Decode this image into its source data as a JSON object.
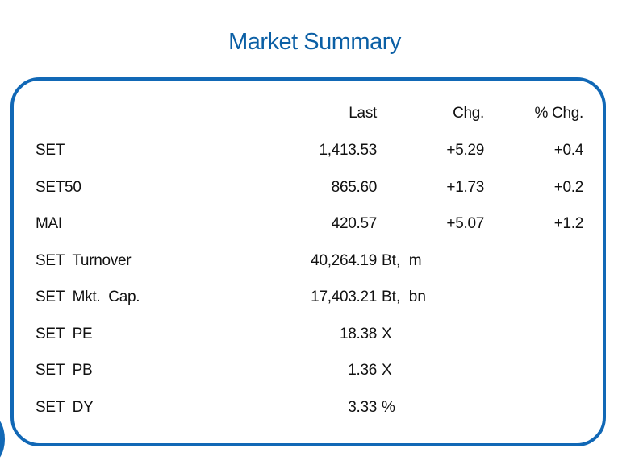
{
  "title": "Market Summary",
  "headers": {
    "last": "Last",
    "chg": "Chg.",
    "pct": "% Chg."
  },
  "rows": [
    {
      "label": "SET",
      "last": "1,413.53",
      "chg": "+5.29",
      "pct": "+0.4"
    },
    {
      "label": "SET50",
      "last": "865.60",
      "chg": "+1.73",
      "pct": "+0.2"
    },
    {
      "label": "MAI",
      "last": "420.57",
      "chg": "+5.07",
      "pct": "+1.2"
    },
    {
      "label": "SET  Turnover",
      "last": "40,264.19",
      "unit": "Bt,  m"
    },
    {
      "label": "SET  Mkt.  Cap.",
      "last": "17,403.21",
      "unit": "Bt,  bn"
    },
    {
      "label": "SET  PE",
      "last": "18.38",
      "unit": "X"
    },
    {
      "label": "SET  PB",
      "last": "1.36",
      "unit": "X"
    },
    {
      "label": "SET  DY",
      "last": "3.33",
      "unit": "%"
    }
  ],
  "colors": {
    "title": "#0b5fa5",
    "border": "#1168b6"
  }
}
